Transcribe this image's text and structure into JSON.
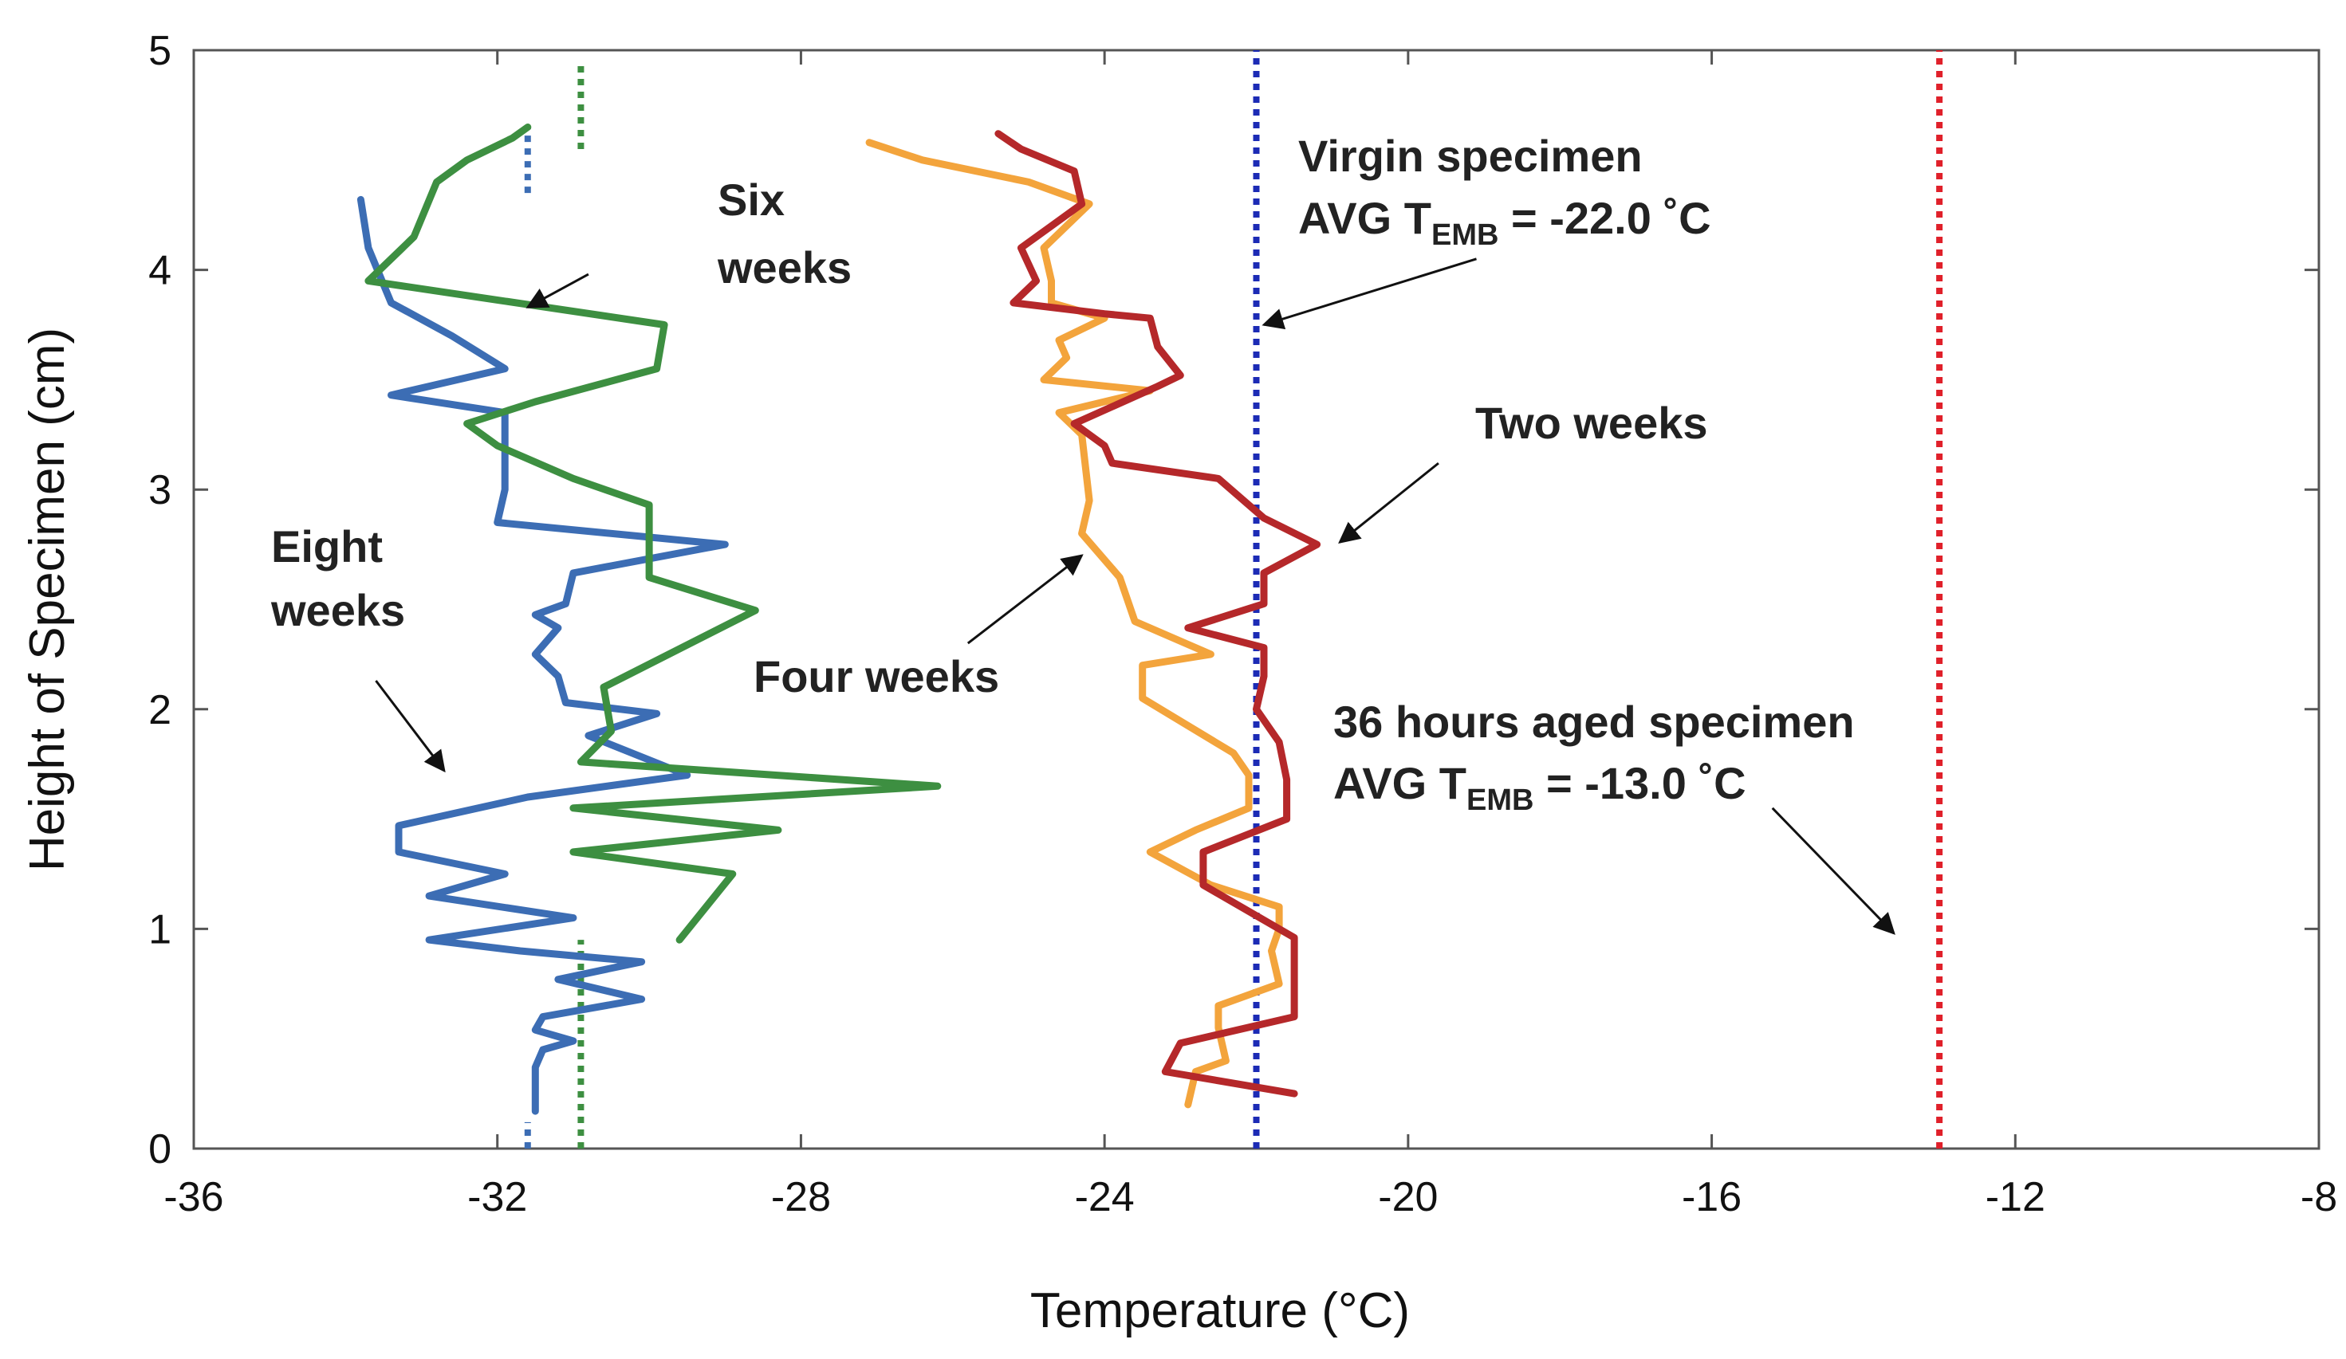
{
  "chart_data": {
    "type": "line",
    "title": "",
    "xlabel": "Temperature (°C)",
    "ylabel": "Height of Specimen (cm)",
    "xlim": [
      -36,
      -8
    ],
    "ylim": [
      0,
      5
    ],
    "xticks": [
      -36,
      -32,
      -28,
      -24,
      -20,
      -16,
      -12,
      -8
    ],
    "yticks": [
      0,
      1,
      2,
      3,
      4,
      5
    ],
    "xtick_labels": [
      "-36",
      "-32",
      "-28",
      "-24",
      "-20",
      "-16",
      "-12",
      "-8"
    ],
    "ytick_labels": [
      "0",
      "1",
      "2",
      "3",
      "4",
      "5"
    ],
    "grid": false,
    "series": [
      {
        "name": "Eight weeks",
        "color": "#3c6db4",
        "points": [
          [
            -31.5,
            0.17
          ],
          [
            -31.5,
            0.37
          ],
          [
            -31.4,
            0.45
          ],
          [
            -31.0,
            0.49
          ],
          [
            -31.5,
            0.54
          ],
          [
            -31.4,
            0.6
          ],
          [
            -30.1,
            0.68
          ],
          [
            -31.2,
            0.77
          ],
          [
            -30.1,
            0.85
          ],
          [
            -31.7,
            0.9
          ],
          [
            -32.9,
            0.95
          ],
          [
            -31.0,
            1.05
          ],
          [
            -32.9,
            1.15
          ],
          [
            -31.9,
            1.25
          ],
          [
            -33.3,
            1.35
          ],
          [
            -33.3,
            1.47
          ],
          [
            -31.6,
            1.6
          ],
          [
            -29.5,
            1.7
          ],
          [
            -30.8,
            1.88
          ],
          [
            -29.9,
            1.98
          ],
          [
            -31.1,
            2.03
          ],
          [
            -31.2,
            2.15
          ],
          [
            -31.5,
            2.25
          ],
          [
            -31.2,
            2.37
          ],
          [
            -31.5,
            2.43
          ],
          [
            -31.1,
            2.48
          ],
          [
            -31.0,
            2.62
          ],
          [
            -29.0,
            2.75
          ],
          [
            -32.0,
            2.85
          ],
          [
            -31.9,
            3.0
          ],
          [
            -31.9,
            3.35
          ],
          [
            -33.4,
            3.43
          ],
          [
            -31.9,
            3.55
          ],
          [
            -32.6,
            3.7
          ],
          [
            -33.4,
            3.85
          ],
          [
            -33.7,
            4.1
          ],
          [
            -33.8,
            4.32
          ]
        ]
      },
      {
        "name": "Six weeks",
        "color": "#3d8f41",
        "points": [
          [
            -29.6,
            0.95
          ],
          [
            -28.9,
            1.25
          ],
          [
            -31.0,
            1.35
          ],
          [
            -28.3,
            1.45
          ],
          [
            -31.0,
            1.55
          ],
          [
            -26.2,
            1.65
          ],
          [
            -30.9,
            1.76
          ],
          [
            -30.5,
            1.9
          ],
          [
            -30.6,
            2.1
          ],
          [
            -28.6,
            2.45
          ],
          [
            -30.0,
            2.6
          ],
          [
            -30.0,
            2.75
          ],
          [
            -30.0,
            2.85
          ],
          [
            -30.0,
            2.93
          ],
          [
            -31.0,
            3.05
          ],
          [
            -32.0,
            3.2
          ],
          [
            -32.4,
            3.3
          ],
          [
            -31.5,
            3.4
          ],
          [
            -29.9,
            3.55
          ],
          [
            -29.8,
            3.75
          ],
          [
            -33.7,
            3.95
          ],
          [
            -33.1,
            4.15
          ],
          [
            -32.8,
            4.4
          ],
          [
            -32.4,
            4.5
          ],
          [
            -32.1,
            4.55
          ],
          [
            -31.8,
            4.6
          ],
          [
            -31.6,
            4.65
          ]
        ]
      },
      {
        "name": "Four weeks",
        "color": "#f3a43c",
        "points": [
          [
            -22.9,
            0.2
          ],
          [
            -22.8,
            0.35
          ],
          [
            -22.4,
            0.4
          ],
          [
            -22.5,
            0.55
          ],
          [
            -22.5,
            0.65
          ],
          [
            -21.7,
            0.75
          ],
          [
            -21.8,
            0.9
          ],
          [
            -21.7,
            1.0
          ],
          [
            -21.7,
            1.1
          ],
          [
            -22.6,
            1.2
          ],
          [
            -23.4,
            1.35
          ],
          [
            -22.8,
            1.45
          ],
          [
            -22.1,
            1.55
          ],
          [
            -22.1,
            1.7
          ],
          [
            -22.3,
            1.8
          ],
          [
            -23.5,
            2.05
          ],
          [
            -23.5,
            2.2
          ],
          [
            -22.6,
            2.25
          ],
          [
            -23.6,
            2.4
          ],
          [
            -23.8,
            2.6
          ],
          [
            -24.3,
            2.8
          ],
          [
            -24.2,
            2.95
          ],
          [
            -24.3,
            3.25
          ],
          [
            -24.6,
            3.35
          ],
          [
            -23.4,
            3.45
          ],
          [
            -24.8,
            3.5
          ],
          [
            -24.5,
            3.6
          ],
          [
            -24.6,
            3.68
          ],
          [
            -24.0,
            3.78
          ],
          [
            -24.7,
            3.85
          ],
          [
            -24.7,
            3.95
          ],
          [
            -24.8,
            4.1
          ],
          [
            -24.2,
            4.3
          ],
          [
            -25.0,
            4.4
          ],
          [
            -26.4,
            4.5
          ],
          [
            -27.1,
            4.58
          ]
        ]
      },
      {
        "name": "Two weeks",
        "color": "#b5282a",
        "points": [
          [
            -21.5,
            0.25
          ],
          [
            -23.2,
            0.35
          ],
          [
            -23.0,
            0.48
          ],
          [
            -21.5,
            0.6
          ],
          [
            -21.5,
            0.8
          ],
          [
            -21.5,
            0.96
          ],
          [
            -22.7,
            1.2
          ],
          [
            -22.7,
            1.35
          ],
          [
            -21.6,
            1.5
          ],
          [
            -21.6,
            1.68
          ],
          [
            -21.7,
            1.85
          ],
          [
            -22.0,
            2.0
          ],
          [
            -21.9,
            2.15
          ],
          [
            -21.9,
            2.28
          ],
          [
            -22.9,
            2.37
          ],
          [
            -21.9,
            2.48
          ],
          [
            -21.9,
            2.62
          ],
          [
            -21.2,
            2.75
          ],
          [
            -21.9,
            2.87
          ],
          [
            -22.5,
            3.05
          ],
          [
            -23.9,
            3.12
          ],
          [
            -24.0,
            3.2
          ],
          [
            -24.4,
            3.3
          ],
          [
            -23.3,
            3.47
          ],
          [
            -23.0,
            3.52
          ],
          [
            -23.3,
            3.65
          ],
          [
            -23.4,
            3.78
          ],
          [
            -24.0,
            3.8
          ],
          [
            -25.2,
            3.85
          ],
          [
            -24.9,
            3.95
          ],
          [
            -25.1,
            4.1
          ],
          [
            -24.7,
            4.2
          ],
          [
            -24.3,
            4.3
          ],
          [
            -24.4,
            4.45
          ],
          [
            -25.1,
            4.55
          ],
          [
            -25.4,
            4.62
          ]
        ]
      }
    ],
    "reference_lines": [
      {
        "name": "Virgin specimen average",
        "x": -22.0,
        "color": "#1c2bb5"
      },
      {
        "name": "36 hours aged specimen average",
        "x": -13.0,
        "color": "#e0202a"
      },
      {
        "name": "Eight weeks average (top)",
        "x": -31.6,
        "y_range": [
          4.35,
          4.65
        ],
        "color": "#3c6db4"
      },
      {
        "name": "Eight weeks average (bottom)",
        "x": -31.6,
        "y_range": [
          0.0,
          0.12
        ],
        "color": "#3c6db4"
      },
      {
        "name": "Six weeks average (top)",
        "x": -30.9,
        "y_range": [
          4.55,
          4.95
        ],
        "color": "#3d8f41"
      },
      {
        "name": "Six weeks average (bottom)",
        "x": -30.9,
        "y_range": [
          0.0,
          0.95
        ],
        "color": "#3d8f41"
      }
    ],
    "annotations": [
      {
        "lines": [
          "Six",
          "weeks"
        ],
        "arrow_from": [
          -30.8,
          3.98
        ],
        "arrow_to": [
          -31.6,
          3.83
        ]
      },
      {
        "lines": [
          "Eight",
          "weeks"
        ],
        "arrow_from": [
          -33.6,
          2.13
        ],
        "arrow_to": [
          -32.7,
          1.72
        ]
      },
      {
        "lines": [
          "Four weeks"
        ],
        "arrow_from": [
          -25.8,
          2.3
        ],
        "arrow_to": [
          -24.3,
          2.7
        ]
      },
      {
        "lines": [
          "Two weeks"
        ],
        "arrow_from": [
          -19.6,
          3.12
        ],
        "arrow_to": [
          -20.9,
          2.76
        ]
      },
      {
        "lines": [
          "Virgin specimen"
        ],
        "sub_line": {
          "prefix": "AVG T",
          "subscript": "EMB",
          "suffix": " = -22.0 ˚C"
        },
        "arrow_from": [
          -19.1,
          4.05
        ],
        "arrow_to": [
          -21.9,
          3.75
        ]
      },
      {
        "lines": [
          "36 hours aged specimen"
        ],
        "sub_line": {
          "prefix": "AVG T",
          "subscript": "EMB",
          "suffix": " = -13.0 ˚C"
        },
        "arrow_from": [
          -15.2,
          1.55
        ],
        "arrow_to": [
          -13.6,
          0.98
        ]
      }
    ]
  }
}
